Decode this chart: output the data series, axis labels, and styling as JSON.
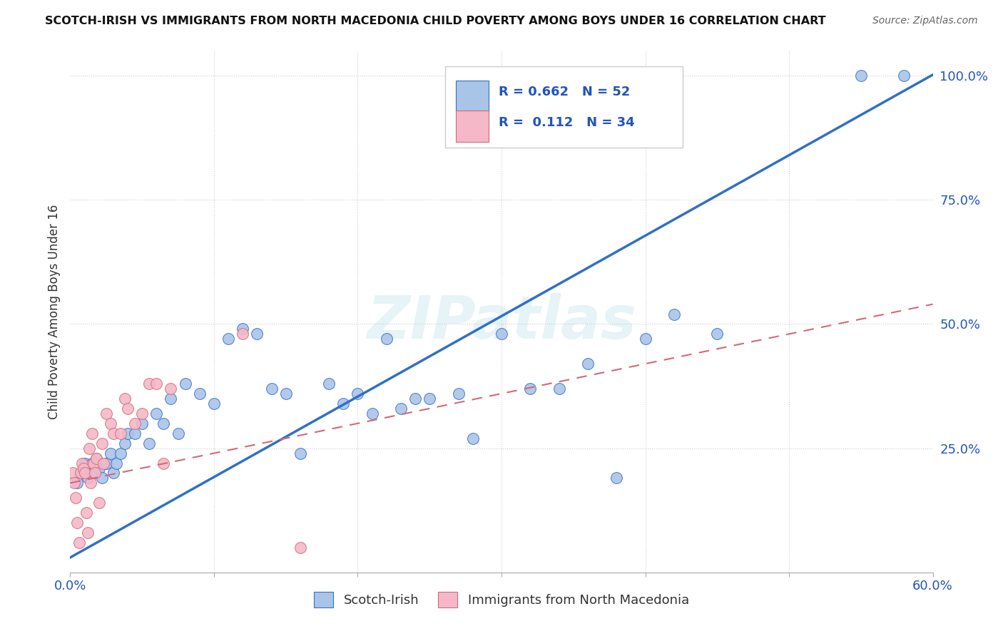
{
  "title": "SCOTCH-IRISH VS IMMIGRANTS FROM NORTH MACEDONIA CHILD POVERTY AMONG BOYS UNDER 16 CORRELATION CHART",
  "source": "Source: ZipAtlas.com",
  "ylabel": "Child Poverty Among Boys Under 16",
  "watermark": "ZIPatlas",
  "xlim": [
    0.0,
    0.6
  ],
  "ylim": [
    0.0,
    1.05
  ],
  "xticks": [
    0.0,
    0.1,
    0.2,
    0.3,
    0.4,
    0.5,
    0.6
  ],
  "xticklabels": [
    "0.0%",
    "",
    "",
    "",
    "",
    "",
    "60.0%"
  ],
  "ytick_positions": [
    0.0,
    0.25,
    0.5,
    0.75,
    1.0
  ],
  "ytick_labels": [
    "",
    "25.0%",
    "50.0%",
    "75.0%",
    "100.0%"
  ],
  "legend_scotch_irish_R": "0.662",
  "legend_scotch_irish_N": "52",
  "legend_macedonia_R": "0.112",
  "legend_macedonia_N": "34",
  "scotch_irish_color": "#aac4e8",
  "macedonia_color": "#f4b8c8",
  "regression_blue_color": "#3070c8",
  "regression_pink_color": "#d46878",
  "background_color": "#ffffff",
  "grid_color": "#cccccc",
  "regression_si_slope": 1.62,
  "regression_si_intercept": 0.03,
  "regression_mac_slope": 0.6,
  "regression_mac_intercept": 0.18,
  "scotch_irish_x": [
    0.005,
    0.008,
    0.01,
    0.012,
    0.015,
    0.016,
    0.018,
    0.02,
    0.022,
    0.025,
    0.028,
    0.03,
    0.032,
    0.035,
    0.038,
    0.04,
    0.045,
    0.05,
    0.055,
    0.06,
    0.065,
    0.07,
    0.075,
    0.08,
    0.09,
    0.1,
    0.11,
    0.12,
    0.13,
    0.14,
    0.15,
    0.16,
    0.18,
    0.19,
    0.2,
    0.21,
    0.22,
    0.23,
    0.24,
    0.25,
    0.27,
    0.28,
    0.3,
    0.32,
    0.34,
    0.36,
    0.38,
    0.4,
    0.42,
    0.45,
    0.55,
    0.58
  ],
  "scotch_irish_y": [
    0.18,
    0.2,
    0.22,
    0.19,
    0.22,
    0.2,
    0.23,
    0.21,
    0.19,
    0.22,
    0.24,
    0.2,
    0.22,
    0.24,
    0.26,
    0.28,
    0.28,
    0.3,
    0.26,
    0.32,
    0.3,
    0.35,
    0.28,
    0.38,
    0.36,
    0.34,
    0.47,
    0.49,
    0.48,
    0.37,
    0.36,
    0.24,
    0.38,
    0.34,
    0.36,
    0.32,
    0.47,
    0.33,
    0.35,
    0.35,
    0.36,
    0.27,
    0.48,
    0.37,
    0.37,
    0.42,
    0.19,
    0.47,
    0.52,
    0.48,
    1.0,
    1.0
  ],
  "macedonia_x": [
    0.002,
    0.003,
    0.004,
    0.005,
    0.006,
    0.007,
    0.008,
    0.009,
    0.01,
    0.011,
    0.012,
    0.013,
    0.014,
    0.015,
    0.016,
    0.017,
    0.018,
    0.02,
    0.022,
    0.023,
    0.025,
    0.028,
    0.03,
    0.035,
    0.038,
    0.04,
    0.045,
    0.05,
    0.055,
    0.06,
    0.065,
    0.07,
    0.12,
    0.16
  ],
  "macedonia_y": [
    0.2,
    0.18,
    0.15,
    0.1,
    0.06,
    0.2,
    0.22,
    0.21,
    0.2,
    0.12,
    0.08,
    0.25,
    0.18,
    0.28,
    0.22,
    0.2,
    0.23,
    0.14,
    0.26,
    0.22,
    0.32,
    0.3,
    0.28,
    0.28,
    0.35,
    0.33,
    0.3,
    0.32,
    0.38,
    0.38,
    0.22,
    0.37,
    0.48,
    0.05
  ]
}
